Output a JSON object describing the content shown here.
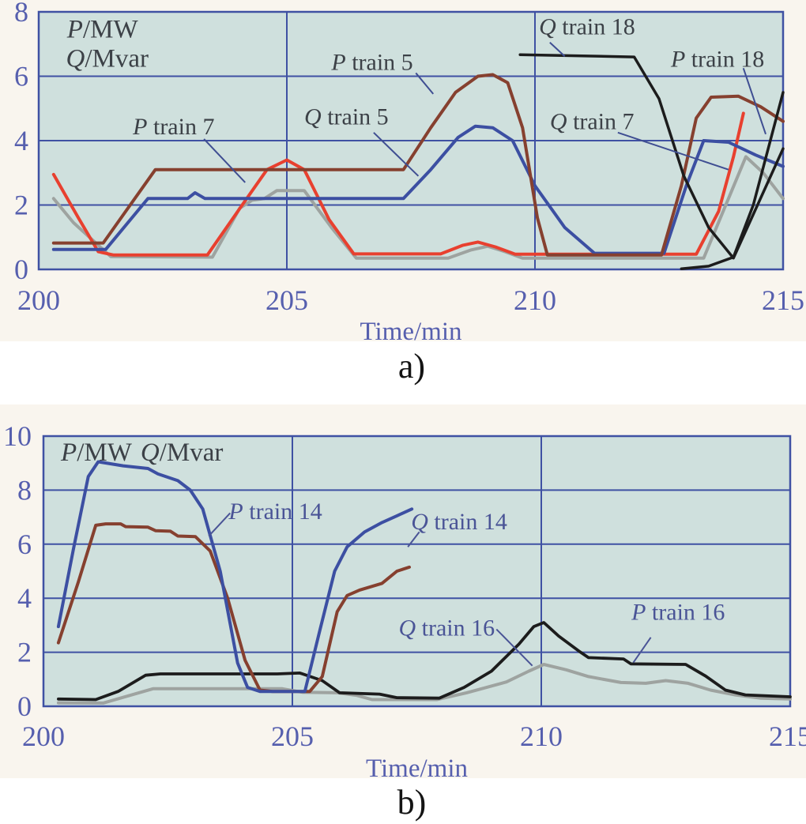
{
  "figure": {
    "sublabel_a": "a)",
    "sublabel_b": "b)"
  },
  "chart_data": [
    {
      "type": "line",
      "xlabel": "Time/min",
      "unit_labels": [
        "P/MW",
        "Q/Mvar"
      ],
      "xlim": [
        200,
        215
      ],
      "ylim": [
        0,
        8
      ],
      "xticks": [
        200,
        205,
        210,
        215
      ],
      "yticks": [
        0,
        2,
        4,
        6,
        8
      ],
      "grid": true,
      "legend_position": "in-plot-annotations",
      "colors": {
        "plot_bg": "#cfe0dd",
        "grid": "#3f51a3",
        "tick": "#565fae",
        "annotation": "#3c4147",
        "leader": "#3f4e92"
      },
      "series": [
        {
          "name": "Q train 7",
          "color": "#9ea3a0",
          "points": [
            [
              200.3,
              2.2
            ],
            [
              200.7,
              1.45
            ],
            [
              201.45,
              0.4
            ],
            [
              203.5,
              0.38
            ],
            [
              204.05,
              1.9
            ],
            [
              204.3,
              2.15
            ],
            [
              204.55,
              2.2
            ],
            [
              204.8,
              2.45
            ],
            [
              205.35,
              2.45
            ],
            [
              205.9,
              1.3
            ],
            [
              206.4,
              0.35
            ],
            [
              208.25,
              0.35
            ],
            [
              208.7,
              0.6
            ],
            [
              209.05,
              0.72
            ],
            [
              209.4,
              0.55
            ],
            [
              209.75,
              0.35
            ],
            [
              213.4,
              0.35
            ],
            [
              213.9,
              2.2
            ],
            [
              214.25,
              3.5
            ],
            [
              214.6,
              3.0
            ],
            [
              215,
              2.2
            ]
          ]
        },
        {
          "name": "P train 7",
          "color": "#e8402f",
          "points": [
            [
              200.3,
              2.95
            ],
            [
              200.8,
              1.6
            ],
            [
              201.2,
              0.55
            ],
            [
              201.5,
              0.45
            ],
            [
              203.4,
              0.45
            ],
            [
              204.1,
              2.0
            ],
            [
              204.6,
              3.1
            ],
            [
              205.0,
              3.4
            ],
            [
              205.35,
              3.1
            ],
            [
              205.85,
              1.55
            ],
            [
              206.35,
              0.48
            ],
            [
              208.1,
              0.48
            ],
            [
              208.55,
              0.75
            ],
            [
              208.85,
              0.85
            ],
            [
              209.2,
              0.7
            ],
            [
              209.6,
              0.47
            ],
            [
              213.25,
              0.47
            ],
            [
              213.7,
              1.8
            ],
            [
              214.0,
              3.5
            ],
            [
              214.2,
              4.85
            ]
          ]
        },
        {
          "name": "Q train 5",
          "color": "#3c4fa2",
          "points": [
            [
              200.3,
              0.62
            ],
            [
              201.35,
              0.62
            ],
            [
              202.2,
              2.2
            ],
            [
              203.0,
              2.2
            ],
            [
              203.15,
              2.38
            ],
            [
              203.35,
              2.2
            ],
            [
              207.35,
              2.2
            ],
            [
              207.9,
              3.1
            ],
            [
              208.45,
              4.1
            ],
            [
              208.8,
              4.45
            ],
            [
              209.15,
              4.4
            ],
            [
              209.55,
              4.0
            ],
            [
              210.0,
              2.6
            ],
            [
              210.6,
              1.3
            ],
            [
              211.2,
              0.5
            ],
            [
              212.6,
              0.5
            ],
            [
              213.05,
              2.6
            ],
            [
              213.4,
              4.0
            ],
            [
              213.9,
              3.95
            ],
            [
              214.45,
              3.55
            ],
            [
              215,
              3.2
            ]
          ]
        },
        {
          "name": "P train 5",
          "color": "#86402f",
          "points": [
            [
              200.3,
              0.82
            ],
            [
              201.3,
              0.82
            ],
            [
              202.35,
              3.1
            ],
            [
              207.35,
              3.1
            ],
            [
              207.9,
              4.4
            ],
            [
              208.4,
              5.5
            ],
            [
              208.85,
              6.0
            ],
            [
              209.15,
              6.05
            ],
            [
              209.45,
              5.8
            ],
            [
              209.75,
              4.4
            ],
            [
              210.05,
              1.6
            ],
            [
              210.25,
              0.45
            ],
            [
              212.55,
              0.45
            ],
            [
              212.95,
              2.6
            ],
            [
              213.25,
              4.7
            ],
            [
              213.55,
              5.35
            ],
            [
              214.1,
              5.38
            ],
            [
              214.55,
              5.05
            ],
            [
              215,
              4.6
            ]
          ]
        },
        {
          "name": "Q train 18",
          "color": "#1c1c1c",
          "width": 3.5,
          "points": [
            [
              209.7,
              6.67
            ],
            [
              212.0,
              6.6
            ],
            [
              212.5,
              5.3
            ],
            [
              213.0,
              2.9
            ],
            [
              213.5,
              1.3
            ],
            [
              214.0,
              0.35
            ],
            [
              215,
              3.75
            ]
          ]
        },
        {
          "name": "P train 18",
          "color": "#1c1c1c",
          "width": 3.5,
          "points": [
            [
              212.95,
              0.02
            ],
            [
              213.5,
              0.1
            ],
            [
              214.0,
              0.38
            ],
            [
              214.4,
              2.0
            ],
            [
              215,
              5.5
            ]
          ]
        }
      ],
      "annotations": [
        {
          "text": "P/MW",
          "x": 200.57,
          "y": 7.2,
          "anchor": "start",
          "size": 33
        },
        {
          "text": "Q/Mvar",
          "x": 200.55,
          "y": 6.3,
          "anchor": "start",
          "size": 33
        },
        {
          "text": "P train 7",
          "x": 202.72,
          "y": 4.2,
          "leader": [
            [
              203.33,
              4.05
            ],
            [
              204.16,
              2.7
            ]
          ]
        },
        {
          "text": "P train 5",
          "x": 206.72,
          "y": 6.2,
          "leader": [
            [
              207.6,
              6.1
            ],
            [
              207.95,
              5.45
            ]
          ]
        },
        {
          "text": "Q train 5",
          "x": 206.2,
          "y": 4.5,
          "leader": [
            [
              206.75,
              4.25
            ],
            [
              207.65,
              2.9
            ]
          ]
        },
        {
          "text": "Q train 18",
          "x": 211.05,
          "y": 7.3,
          "leader": [
            [
              210.3,
              7.05
            ],
            [
              210.6,
              6.62
            ]
          ]
        },
        {
          "text": "P train 18",
          "x": 213.68,
          "y": 6.3,
          "leader": [
            [
              214.2,
              6.25
            ],
            [
              214.65,
              4.2
            ]
          ]
        },
        {
          "text": "Q train 7",
          "x": 211.15,
          "y": 4.35,
          "leader": [
            [
              211.67,
              4.25
            ],
            [
              213.9,
              3.1
            ]
          ]
        }
      ]
    },
    {
      "type": "line",
      "xlabel": "Time/min",
      "unit_labels": [
        "P/MW",
        "Q/Mvar"
      ],
      "xlim": [
        200,
        215
      ],
      "ylim": [
        0,
        10
      ],
      "xticks": [
        200,
        205,
        210,
        215
      ],
      "yticks": [
        0,
        2,
        4,
        6,
        8,
        10
      ],
      "grid": true,
      "legend_position": "in-plot-annotations",
      "colors": {
        "plot_bg": "#cfe0dd",
        "grid": "#3f51a3",
        "tick": "#565fae",
        "annotation": "#3c4147",
        "leader": "#4a5496"
      },
      "series": [
        {
          "name": "Q train 16",
          "color": "#9ea3a0",
          "points": [
            [
              200.3,
              0.13
            ],
            [
              201.2,
              0.12
            ],
            [
              202.2,
              0.65
            ],
            [
              204.8,
              0.65
            ],
            [
              205.2,
              0.52
            ],
            [
              205.9,
              0.5
            ],
            [
              206.3,
              0.4
            ],
            [
              206.6,
              0.25
            ],
            [
              207.9,
              0.25
            ],
            [
              208.5,
              0.5
            ],
            [
              209.3,
              0.9
            ],
            [
              209.75,
              1.3
            ],
            [
              210.05,
              1.55
            ],
            [
              210.5,
              1.35
            ],
            [
              210.95,
              1.1
            ],
            [
              211.6,
              0.88
            ],
            [
              212.1,
              0.85
            ],
            [
              212.5,
              0.95
            ],
            [
              212.95,
              0.85
            ],
            [
              213.4,
              0.6
            ],
            [
              213.9,
              0.42
            ],
            [
              214.4,
              0.3
            ],
            [
              215,
              0.27
            ]
          ]
        },
        {
          "name": "P train 16",
          "color": "#1c1c1c",
          "width": 3.8,
          "points": [
            [
              200.3,
              0.27
            ],
            [
              201.05,
              0.25
            ],
            [
              201.5,
              0.55
            ],
            [
              202.05,
              1.15
            ],
            [
              202.35,
              1.2
            ],
            [
              204.7,
              1.2
            ],
            [
              205.15,
              1.23
            ],
            [
              205.6,
              0.95
            ],
            [
              205.95,
              0.5
            ],
            [
              206.75,
              0.45
            ],
            [
              207.1,
              0.32
            ],
            [
              207.95,
              0.3
            ],
            [
              208.45,
              0.7
            ],
            [
              209.0,
              1.3
            ],
            [
              209.55,
              2.3
            ],
            [
              209.85,
              2.95
            ],
            [
              210.05,
              3.1
            ],
            [
              210.35,
              2.6
            ],
            [
              210.75,
              2.05
            ],
            [
              210.95,
              1.8
            ],
            [
              211.65,
              1.75
            ],
            [
              211.8,
              1.57
            ],
            [
              212.9,
              1.55
            ],
            [
              213.3,
              1.12
            ],
            [
              213.7,
              0.6
            ],
            [
              214.1,
              0.42
            ],
            [
              215,
              0.35
            ]
          ]
        },
        {
          "name": "Q train 14",
          "color": "#86402f",
          "points": [
            [
              200.3,
              2.35
            ],
            [
              200.7,
              4.6
            ],
            [
              201.05,
              6.7
            ],
            [
              201.25,
              6.75
            ],
            [
              201.55,
              6.75
            ],
            [
              201.65,
              6.65
            ],
            [
              202.1,
              6.63
            ],
            [
              202.25,
              6.5
            ],
            [
              202.55,
              6.48
            ],
            [
              202.7,
              6.3
            ],
            [
              203.05,
              6.28
            ],
            [
              203.35,
              5.75
            ],
            [
              203.7,
              4.0
            ],
            [
              204.05,
              1.7
            ],
            [
              204.35,
              0.6
            ],
            [
              204.6,
              0.55
            ],
            [
              205.35,
              0.55
            ],
            [
              205.6,
              1.1
            ],
            [
              205.9,
              3.5
            ],
            [
              206.1,
              4.1
            ],
            [
              206.35,
              4.3
            ],
            [
              206.8,
              4.55
            ],
            [
              207.1,
              5.0
            ],
            [
              207.35,
              5.15
            ]
          ]
        },
        {
          "name": "P train 14",
          "color": "#3c4fa2",
          "points": [
            [
              200.3,
              2.95
            ],
            [
              200.6,
              5.8
            ],
            [
              200.9,
              8.5
            ],
            [
              201.1,
              9.05
            ],
            [
              201.6,
              8.9
            ],
            [
              202.1,
              8.8
            ],
            [
              202.3,
              8.6
            ],
            [
              202.7,
              8.35
            ],
            [
              202.95,
              8.0
            ],
            [
              203.2,
              7.3
            ],
            [
              203.55,
              5.0
            ],
            [
              203.9,
              1.6
            ],
            [
              204.1,
              0.7
            ],
            [
              204.35,
              0.55
            ],
            [
              205.25,
              0.55
            ],
            [
              205.55,
              2.8
            ],
            [
              205.85,
              5.0
            ],
            [
              206.1,
              5.9
            ],
            [
              206.45,
              6.45
            ],
            [
              206.8,
              6.8
            ],
            [
              207.1,
              7.05
            ],
            [
              207.4,
              7.3
            ]
          ]
        }
      ],
      "annotations": [
        {
          "text": "P/MW",
          "x": 200.35,
          "y": 9.1,
          "anchor": "start",
          "size": 33
        },
        {
          "text": "Q/Mvar",
          "x": 201.95,
          "y": 9.1,
          "anchor": "start",
          "size": 33
        },
        {
          "text": "P train 14",
          "x": 204.66,
          "y": 6.93,
          "color": "#4a5496",
          "leader": [
            [
              203.75,
              7.15
            ],
            [
              203.32,
              6.3
            ]
          ]
        },
        {
          "text": "Q train 14",
          "x": 208.35,
          "y": 6.55,
          "color": "#4a5496",
          "leader": [
            [
              207.55,
              6.45
            ],
            [
              207.32,
              5.9
            ]
          ]
        },
        {
          "text": "Q train 16",
          "x": 208.1,
          "y": 2.62,
          "color": "#4a5496",
          "leader": [
            [
              209.1,
              2.85
            ],
            [
              209.82,
              1.5
            ]
          ]
        },
        {
          "text": "P train 16",
          "x": 212.75,
          "y": 3.2,
          "color": "#4a5496",
          "leader": [
            [
              212.2,
              2.55
            ],
            [
              211.85,
              1.62
            ]
          ]
        }
      ]
    }
  ]
}
